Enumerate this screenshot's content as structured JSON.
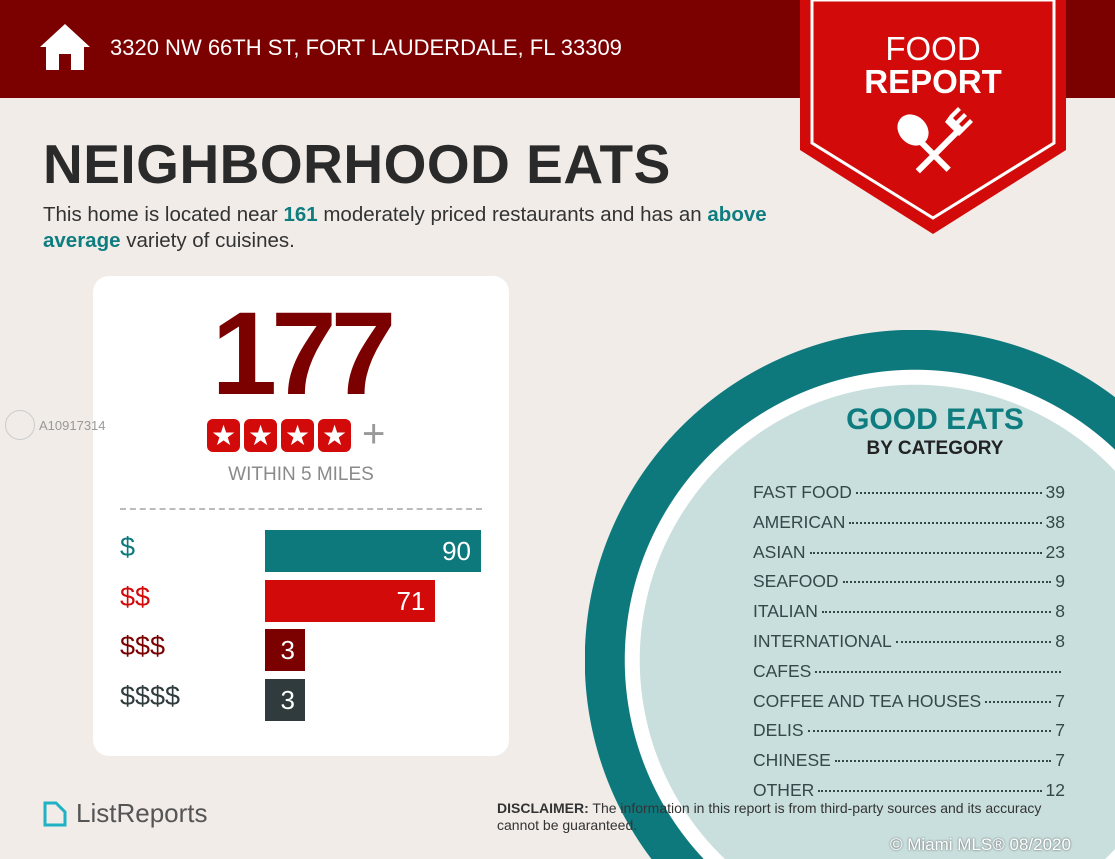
{
  "header": {
    "address": "3320 NW 66TH ST, FORT LAUDERDALE, FL 33309",
    "icon": "house-icon"
  },
  "badge": {
    "line1": "FOOD",
    "line2": "REPORT",
    "icon": "spoon-fork-icon",
    "color": "#d20a0a"
  },
  "title": "NEIGHBORHOOD EATS",
  "intro": {
    "p1": "This home is located near ",
    "count": "161",
    "p2": " moderately priced restaurants and has an ",
    "variety": "above average",
    "p3": " variety of cuisines."
  },
  "summary": {
    "total": "177",
    "rating_stars": 4,
    "plus": "+",
    "within": "WITHIN 5 MILES"
  },
  "price_chart": {
    "type": "bar",
    "categories": [
      "$",
      "$$",
      "$$$",
      "$$$$"
    ],
    "values": [
      90,
      71,
      3,
      3
    ],
    "colors": [
      "#0e797d",
      "#d20a0a",
      "#7b0101",
      "#2f3b3c"
    ]
  },
  "good_eats": {
    "title": "GOOD EATS",
    "subtitle": "BY CATEGORY",
    "items": [
      {
        "name": "FAST FOOD",
        "count": "39"
      },
      {
        "name": "AMERICAN",
        "count": "38"
      },
      {
        "name": "ASIAN",
        "count": "23"
      },
      {
        "name": "SEAFOOD",
        "count": "9"
      },
      {
        "name": "ITALIAN",
        "count": "8"
      },
      {
        "name": "INTERNATIONAL",
        "count": "8"
      },
      {
        "name": "CAFES",
        "count": ""
      },
      {
        "name": "COFFEE AND TEA HOUSES",
        "count": "7"
      },
      {
        "name": "DELIS",
        "count": "7"
      },
      {
        "name": "CHINESE",
        "count": "7"
      },
      {
        "name": "OTHER",
        "count": "12"
      }
    ]
  },
  "footer": {
    "logo": "ListReports",
    "disclaimer_label": "DISCLAIMER:",
    "disclaimer": " The information in this report is from third-party sources and its accuracy cannot be guaranteed.",
    "watermark": "A10917314",
    "copyright": "© Miami MLS® 08/2020"
  }
}
